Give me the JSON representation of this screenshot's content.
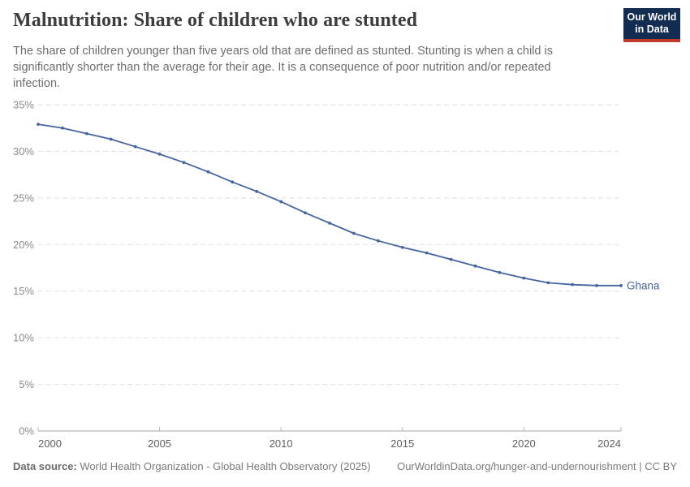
{
  "header": {
    "title": "Malnutrition: Share of children who are stunted",
    "subtitle": "The share of children younger than five years old that are defined as stunted. Stunting is when a child is significantly shorter than the average for their age. It is a consequence of poor nutrition and/or repeated infection.",
    "logo_line1": "Our World",
    "logo_line2": "in Data"
  },
  "footer": {
    "source_label": "Data source:",
    "source_text": "World Health Organization - Global Health Observatory (2025)",
    "link_text": "OurWorldinData.org/hunger-and-undernourishment | CC BY"
  },
  "colors": {
    "series_blue": "#4665a0",
    "logo_navy": "#132c51",
    "logo_red": "#c03a2b",
    "gridline": "#e0e0e0",
    "axis": "#a6a6a6"
  },
  "chart_data": {
    "type": "line",
    "title": "Malnutrition: Share of children who are stunted",
    "entity": "Ghana",
    "xlabel": "",
    "ylabel": "",
    "xlim": [
      2000,
      2024
    ],
    "ylim": [
      0,
      35
    ],
    "x_ticks": [
      2000,
      2005,
      2010,
      2015,
      2020,
      2024
    ],
    "y_ticks": [
      0,
      5,
      10,
      15,
      20,
      25,
      30,
      35
    ],
    "y_tick_suffix": "%",
    "grid": "horizontal-dashed",
    "legend_position": "end-of-line-label",
    "series": [
      {
        "name": "Ghana",
        "color": "#4665a0",
        "x": [
          2000,
          2001,
          2002,
          2003,
          2004,
          2005,
          2006,
          2007,
          2008,
          2009,
          2010,
          2011,
          2012,
          2013,
          2014,
          2015,
          2016,
          2017,
          2018,
          2019,
          2020,
          2021,
          2022,
          2023,
          2024
        ],
        "values": [
          32.9,
          32.5,
          31.9,
          31.3,
          30.5,
          29.7,
          28.8,
          27.8,
          26.7,
          25.7,
          24.6,
          23.4,
          22.3,
          21.2,
          20.4,
          19.7,
          19.1,
          18.4,
          17.7,
          17.0,
          16.4,
          15.9,
          15.7,
          15.6,
          15.6
        ]
      }
    ]
  }
}
